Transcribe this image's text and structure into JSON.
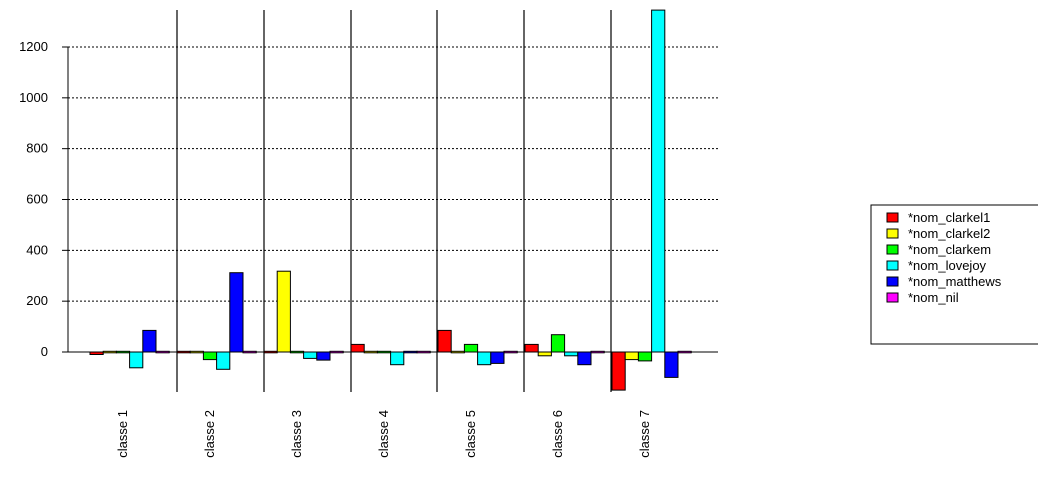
{
  "chart_data": {
    "type": "bar",
    "categories": [
      "classe 1",
      "classe 2",
      "classe 3",
      "classe 4",
      "classe 5",
      "classe 6",
      "classe 7"
    ],
    "series": [
      {
        "name": "*nom_clarkel1",
        "color": "#ff0000",
        "values": [
          -10,
          -4,
          0,
          30,
          85,
          30,
          -150
        ]
      },
      {
        "name": "*nom_clarkel2",
        "color": "#ffff00",
        "values": [
          0,
          -5,
          318,
          0,
          -3,
          -15,
          -30
        ]
      },
      {
        "name": "*nom_clarkem",
        "color": "#00ff00",
        "values": [
          0,
          -30,
          -4,
          0,
          30,
          68,
          -35
        ]
      },
      {
        "name": "*nom_lovejoy",
        "color": "#00ffff",
        "values": [
          -62,
          -68,
          -25,
          -50,
          -50,
          -15,
          1345
        ]
      },
      {
        "name": "*nom_matthews",
        "color": "#0000ff",
        "values": [
          85,
          312,
          -32,
          0,
          -45,
          -50,
          -100
        ]
      },
      {
        "name": "*nom_nil",
        "color": "#ff00ff",
        "values": [
          -4,
          -3,
          0,
          0,
          0,
          2,
          3
        ]
      }
    ],
    "y_ticks": [
      0,
      200,
      400,
      600,
      800,
      1000,
      1200
    ],
    "ylim": [
      -160,
      1345
    ],
    "grid": "horizontal dotted",
    "legend_position": "right",
    "title": "",
    "xlabel": "",
    "ylabel": ""
  }
}
